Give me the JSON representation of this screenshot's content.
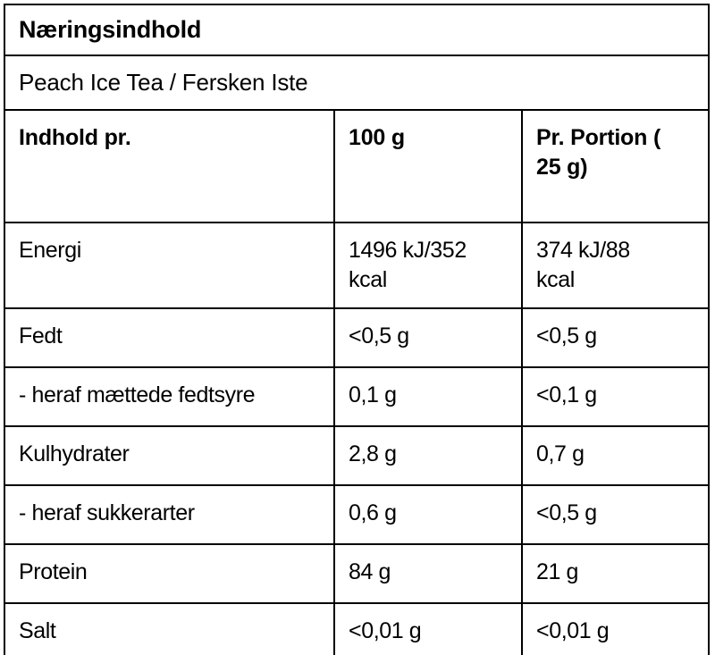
{
  "table": {
    "title": "Næringsindhold",
    "product": "Peach Ice Tea / Fersken Iste",
    "columns": [
      "Indhold pr.",
      "100 g",
      "Pr. Portion (\n25 g)"
    ],
    "rows": [
      {
        "label": "Energi",
        "per100g": "1496 kJ/352\nkcal",
        "per_portion": "374 kJ/88\nkcal"
      },
      {
        "label": "Fedt",
        "per100g": "<0,5 g",
        "per_portion": "<0,5 g"
      },
      {
        "label": "- heraf mættede fedtsyre",
        "per100g": "0,1 g",
        "per_portion": "<0,1 g"
      },
      {
        "label": "Kulhydrater",
        "per100g": "2,8 g",
        "per_portion": "0,7 g"
      },
      {
        "label": "- heraf sukkerarter",
        "per100g": "0,6 g",
        "per_portion": "<0,5 g"
      },
      {
        "label": "Protein",
        "per100g": "84 g",
        "per_portion": "21 g"
      },
      {
        "label": "Salt",
        "per100g": "<0,01 g",
        "per_portion": "<0,01 g"
      }
    ],
    "colors": {
      "border": "#000000",
      "text": "#000000",
      "background": "#ffffff"
    }
  }
}
